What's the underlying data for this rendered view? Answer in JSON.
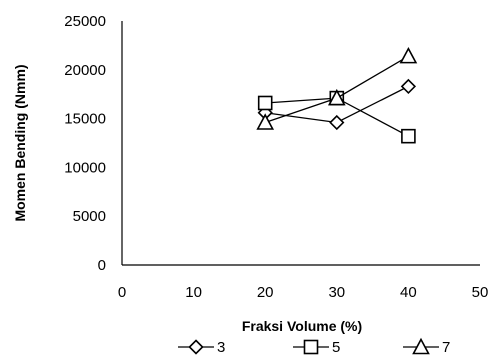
{
  "chart_data": {
    "type": "line",
    "title": "",
    "xlabel": "Fraksi Volume (%)",
    "ylabel": "Momen Bending (Nmm)",
    "xlim": [
      0,
      50
    ],
    "ylim": [
      0,
      25000
    ],
    "xticks": [
      0,
      10,
      20,
      30,
      40,
      50
    ],
    "yticks": [
      0,
      5000,
      10000,
      15000,
      20000,
      25000
    ],
    "x": [
      20,
      30,
      40
    ],
    "grid": false,
    "legend_position": "bottom",
    "series": [
      {
        "name": "3",
        "marker": "diamond",
        "values": [
          15600,
          14600,
          18300
        ]
      },
      {
        "name": "5",
        "marker": "square",
        "values": [
          16600,
          17100,
          13200
        ]
      },
      {
        "name": "7",
        "marker": "triangle",
        "values": [
          14600,
          17100,
          21400
        ]
      }
    ],
    "colors": {
      "line": "#000000",
      "marker_fill": "#ffffff"
    }
  }
}
